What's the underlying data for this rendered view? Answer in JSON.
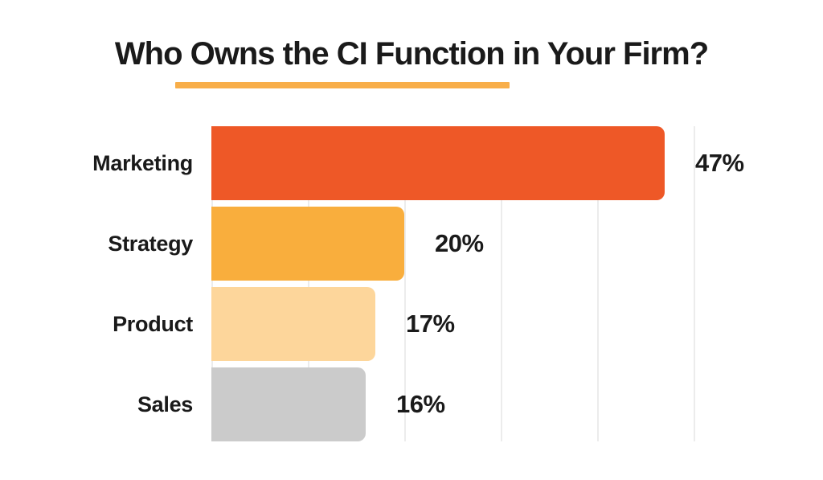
{
  "chart_data": {
    "type": "bar",
    "orientation": "horizontal",
    "title": "Who Owns the CI Function in Your Firm?",
    "categories": [
      "Marketing",
      "Strategy",
      "Product",
      "Sales"
    ],
    "values": [
      47,
      20,
      17,
      16
    ],
    "value_labels": [
      "47%",
      "20%",
      "17%",
      "16%"
    ],
    "bar_colors": [
      "#EE5827",
      "#F9AE3D",
      "#FDD69B",
      "#CBCBCB"
    ],
    "xlim": [
      0,
      58
    ],
    "gridlines": {
      "step": 10,
      "max": 50,
      "visible": true
    },
    "legend": "none",
    "value_label_position": "right-of-bar",
    "category_label_position": "left"
  },
  "colors": {
    "title_underline": "#F8AE49",
    "grid": "#ECECEC",
    "text": "#1A1A1A",
    "background": "#FFFFFF"
  }
}
